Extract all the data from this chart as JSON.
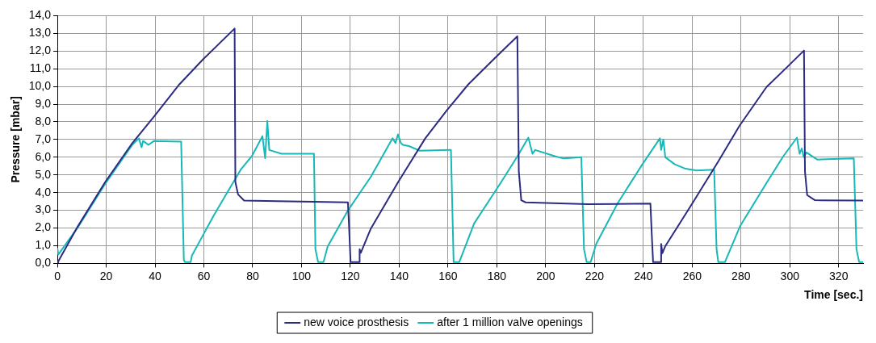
{
  "chart_data": {
    "type": "line",
    "xlabel": "Time [sec.]",
    "ylabel": "Pressure [mbar]",
    "xlim": [
      0,
      330
    ],
    "xticks": [
      0,
      20,
      40,
      60,
      80,
      100,
      120,
      140,
      160,
      180,
      200,
      220,
      240,
      260,
      280,
      300,
      320
    ],
    "ylim": [
      0,
      14
    ],
    "yticks": [
      {
        "value": 0,
        "label": "0,0"
      },
      {
        "value": 1,
        "label": "1,0"
      },
      {
        "value": 2,
        "label": "2,0"
      },
      {
        "value": 3,
        "label": "3,0"
      },
      {
        "value": 4,
        "label": "4,0"
      },
      {
        "value": 5,
        "label": "5,0"
      },
      {
        "value": 6,
        "label": "6,0"
      },
      {
        "value": 7,
        "label": "7,0"
      },
      {
        "value": 8,
        "label": "8,0"
      },
      {
        "value": 9,
        "label": "9,0"
      },
      {
        "value": 10,
        "label": "10,0"
      },
      {
        "value": 11,
        "label": "11,0"
      },
      {
        "value": 12,
        "label": "12,0"
      },
      {
        "value": 13,
        "label": "13,0"
      },
      {
        "value": 14,
        "label": "14,0"
      }
    ],
    "grid": true,
    "legend": "bottom",
    "marker": "none",
    "line_style": "solid",
    "series": [
      {
        "name": "new voice prosthesis",
        "color": "#2b2b82",
        "x": [
          0,
          0.3,
          8.4,
          19.6,
          30.7,
          39.6,
          49.6,
          59.6,
          72.6,
          72.9,
          74,
          76.5,
          90,
          105,
          119,
          119.5,
          120.1,
          123.8,
          123.8,
          124.3,
          128.4,
          139.6,
          150.7,
          159.6,
          168.4,
          179.6,
          188.4,
          189,
          190,
          191.8,
          217.3,
          242.9,
          243.5,
          244,
          247.3,
          247.3,
          247.8,
          248.9,
          259.5,
          270.6,
          279.4,
          290.4,
          299.3,
          305.8,
          306.2,
          307.1,
          310.3,
          330
        ],
        "values": [
          0,
          0.1,
          2.1,
          4.6,
          6.8,
          8.3,
          10.06,
          11.52,
          13.27,
          4.6,
          3.9,
          3.55,
          3.52,
          3.48,
          3.45,
          2.0,
          0.07,
          0.07,
          0.8,
          0.6,
          1.97,
          4.6,
          7.07,
          8.67,
          10.13,
          11.66,
          12.83,
          5.2,
          3.57,
          3.45,
          3.35,
          3.38,
          1.5,
          0.07,
          0.07,
          1.1,
          0.58,
          0.95,
          3.27,
          5.74,
          7.78,
          9.96,
          11.15,
          12.03,
          5.2,
          3.86,
          3.57,
          3.55
        ]
      },
      {
        "name": "after 1 million valve openings",
        "color": "#17b8b8",
        "x": [
          0,
          0.4,
          8.4,
          19.6,
          30.7,
          33.4,
          34.5,
          35.1,
          37.3,
          39.6,
          50.7,
          51.8,
          52.3,
          54.6,
          55.1,
          64,
          75.1,
          79.6,
          84,
          85.1,
          86,
          86.8,
          91.8,
          105.1,
          105.7,
          106.8,
          109,
          110.7,
          119,
          128.4,
          137.3,
          138.5,
          139.5,
          140.7,
          141.5,
          144,
          148.4,
          160.7,
          161.2,
          162.3,
          164.6,
          170.7,
          181.8,
          188.4,
          192.9,
          194.6,
          195.7,
          204,
          207.3,
          214.6,
          215.7,
          216.8,
          218.4,
          220.7,
          229.6,
          239.6,
          246.8,
          247.3,
          248.2,
          249,
          252.9,
          257.3,
          261.8,
          269,
          270,
          270.7,
          273.4,
          279.6,
          290.7,
          297.3,
          302.9,
          304,
          304.9,
          305.7,
          306.8,
          311.2,
          326.2,
          327.3,
          328.4,
          330
        ],
        "values": [
          0.87,
          0.5,
          2.04,
          4.5,
          6.7,
          7.07,
          6.56,
          6.92,
          6.7,
          6.92,
          6.88,
          0.2,
          0.07,
          0.07,
          0.44,
          2.7,
          5.3,
          6.05,
          7.19,
          5.95,
          8.05,
          6.41,
          6.2,
          6.2,
          0.8,
          0.07,
          0.07,
          0.95,
          2.99,
          4.9,
          7.07,
          6.8,
          7.29,
          6.8,
          6.7,
          6.63,
          6.37,
          6.41,
          6.41,
          0.07,
          0.07,
          2.26,
          4.6,
          6.05,
          7.11,
          6.2,
          6.41,
          6.05,
          5.93,
          6.0,
          0.8,
          0.07,
          0.07,
          1.1,
          3.43,
          5.6,
          7.07,
          6.41,
          7.0,
          6.0,
          5.6,
          5.35,
          5.25,
          5.3,
          0.8,
          0.07,
          0.07,
          2.1,
          4.6,
          6.05,
          7.11,
          6.2,
          6.5,
          6.0,
          6.27,
          5.87,
          5.93,
          0.8,
          0.07,
          0.07
        ]
      }
    ]
  }
}
